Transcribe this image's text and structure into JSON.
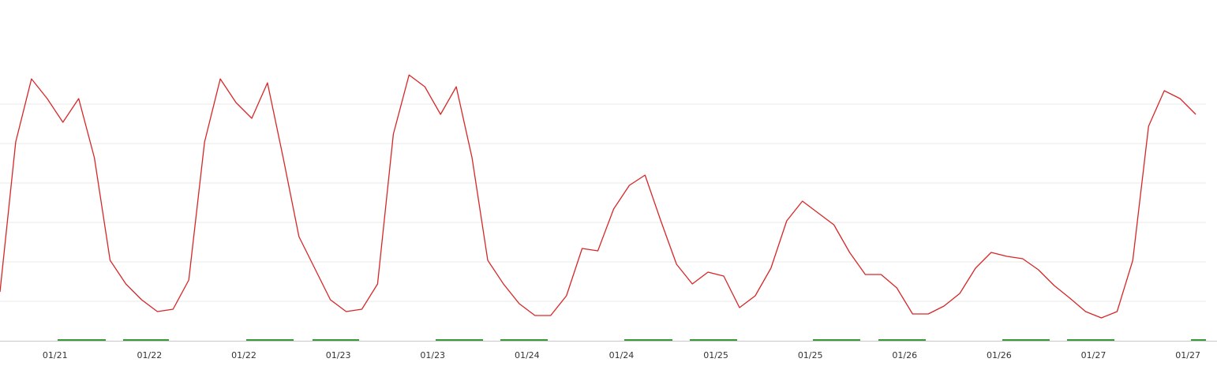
{
  "chart_data": {
    "type": "line",
    "x": [
      -7,
      -5,
      -3,
      -1,
      1,
      3,
      5,
      7,
      9,
      11,
      13,
      15,
      17,
      19,
      21,
      23,
      25,
      27,
      29,
      31,
      33,
      35,
      37,
      39,
      41,
      43,
      45,
      47,
      49,
      51,
      53,
      55,
      57,
      59,
      61,
      63,
      65,
      67,
      69,
      71,
      73,
      75,
      77,
      79,
      81,
      83,
      85,
      87,
      89,
      91,
      93,
      95,
      97,
      99,
      101,
      103,
      105,
      107,
      109,
      111,
      113,
      115,
      117,
      119,
      121,
      123,
      125,
      127,
      129,
      131,
      133,
      135,
      137,
      139,
      141,
      143,
      145
    ],
    "series": [
      {
        "color": "#d62728",
        "values": [
          1.24,
          5.04,
          6.64,
          6.14,
          5.54,
          6.14,
          4.64,
          2.04,
          1.44,
          1.04,
          0.74,
          0.8,
          1.54,
          5.04,
          6.64,
          6.04,
          5.64,
          6.54,
          4.64,
          2.64,
          1.84,
          1.04,
          0.74,
          0.8,
          1.44,
          5.24,
          6.74,
          6.44,
          5.74,
          6.44,
          4.64,
          2.04,
          1.44,
          0.94,
          0.64,
          0.64,
          1.14,
          2.34,
          2.28,
          3.34,
          3.94,
          4.2,
          3.04,
          1.94,
          1.44,
          1.74,
          1.64,
          0.84,
          1.14,
          1.84,
          3.04,
          3.54,
          3.24,
          2.94,
          2.24,
          1.68,
          1.68,
          1.34,
          0.68,
          0.68,
          0.88,
          1.2,
          1.84,
          2.24,
          2.14,
          2.08,
          1.8,
          1.4,
          1.08,
          0.74,
          0.58,
          0.74,
          2.04,
          5.44,
          6.34,
          6.14,
          5.74
        ]
      }
    ],
    "xlim": [
      -7,
      147.7
    ],
    "xticks": [
      {
        "value": 0,
        "label": "01/21"
      },
      {
        "value": 12,
        "label": "01/22"
      },
      {
        "value": 24,
        "label": "01/22"
      },
      {
        "value": 36,
        "label": "01/23"
      },
      {
        "value": 48,
        "label": "01/23"
      },
      {
        "value": 60,
        "label": "01/24"
      },
      {
        "value": 72,
        "label": "01/24"
      },
      {
        "value": 84,
        "label": "01/25"
      },
      {
        "value": 96,
        "label": "01/25"
      },
      {
        "value": 108,
        "label": "01/26"
      },
      {
        "value": 120,
        "label": "01/26"
      },
      {
        "value": 132,
        "label": "01/27"
      },
      {
        "value": 144,
        "label": "01/27"
      }
    ],
    "ylim": [
      0,
      8
    ],
    "yticks": [
      1,
      2,
      3,
      4,
      5,
      6
    ],
    "grid": true
  }
}
